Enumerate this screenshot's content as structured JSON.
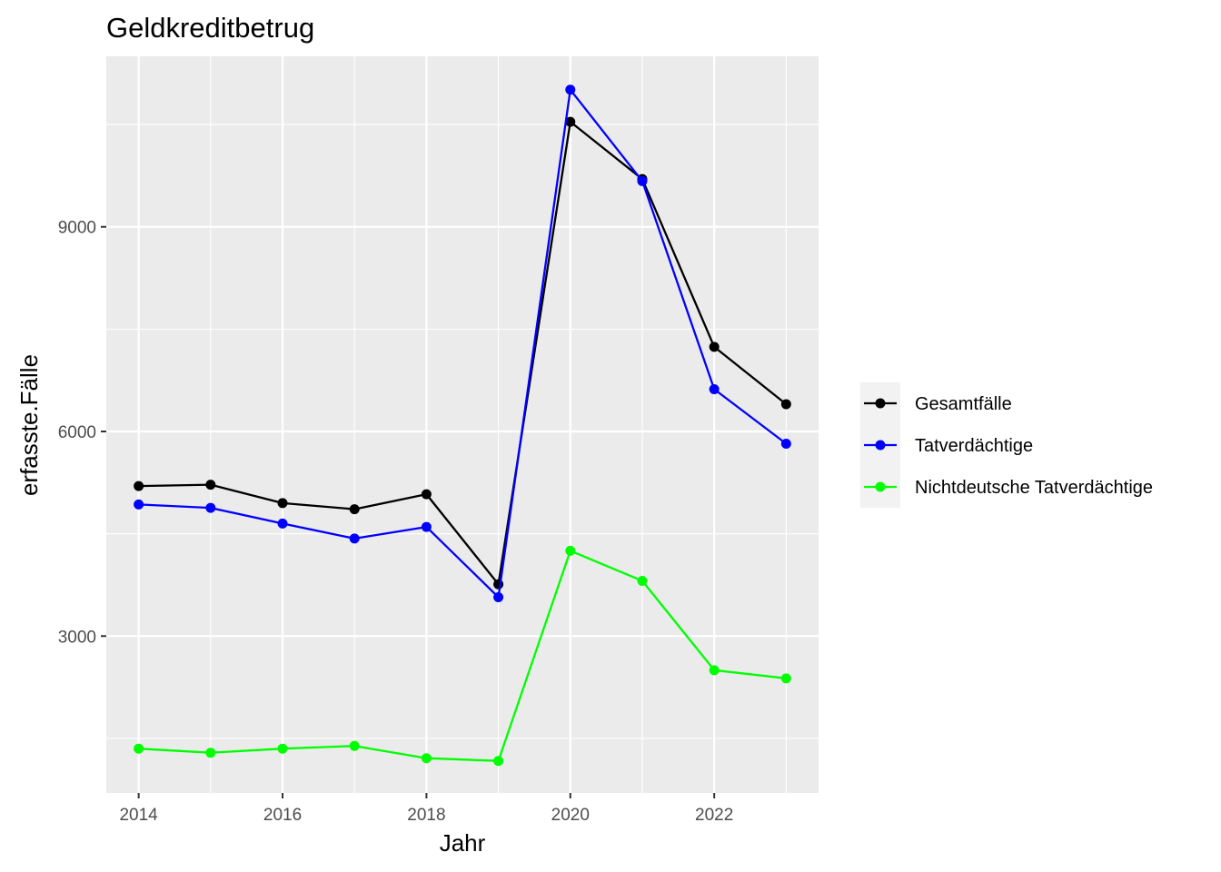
{
  "chart_data": {
    "type": "line",
    "title": "Geldkreditbetrug",
    "xlabel": "Jahr",
    "ylabel": "erfasste.Fälle",
    "x": [
      2014,
      2015,
      2016,
      2017,
      2018,
      2019,
      2020,
      2021,
      2022,
      2023
    ],
    "x_ticks": [
      2014,
      2016,
      2018,
      2020,
      2022
    ],
    "y_ticks": [
      3000,
      6000,
      9000
    ],
    "xlim": [
      2013.55,
      2023.45
    ],
    "ylim": [
      700,
      11500
    ],
    "grid": true,
    "background": "#ebebeb",
    "legend_position": "right",
    "series": [
      {
        "name": "Gesamtfälle",
        "color": "#000000",
        "values": [
          5200,
          5220,
          4950,
          4860,
          5080,
          3760,
          10540,
          9700,
          7240,
          6400
        ]
      },
      {
        "name": "Tatverdächtige",
        "color": "#0000ff",
        "values": [
          4930,
          4880,
          4650,
          4430,
          4600,
          3570,
          11010,
          9670,
          6620,
          5820
        ]
      },
      {
        "name": "Nichtdeutsche Tatverdächtige",
        "color": "#00ff00",
        "values": [
          1350,
          1290,
          1350,
          1390,
          1210,
          1170,
          4250,
          3810,
          2500,
          2380
        ]
      }
    ]
  }
}
